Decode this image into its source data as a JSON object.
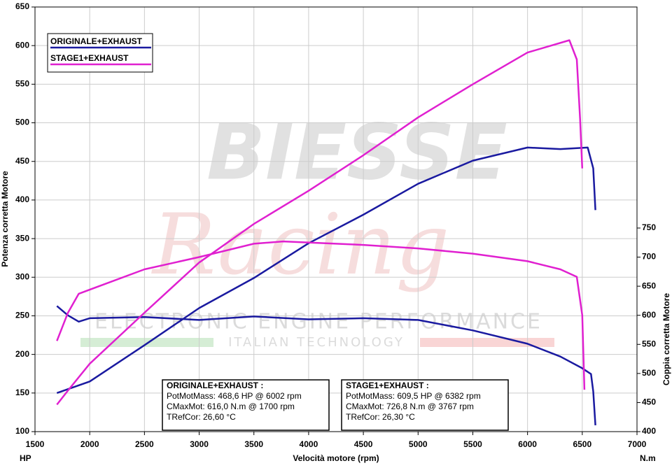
{
  "chart_data": {
    "type": "line",
    "xlabel": "Velocità motore (rpm)",
    "ylabel": "Potenza corretta Motore",
    "y2label": "Coppia corretta Motore",
    "yunit": "HP",
    "y2unit": "N.m",
    "xlim": [
      1500,
      7000
    ],
    "xticks": [
      1500,
      2000,
      2500,
      3000,
      3500,
      4000,
      4500,
      5000,
      5500,
      6000,
      6500,
      7000
    ],
    "ylim": [
      100,
      650
    ],
    "yticks": [
      100,
      150,
      200,
      250,
      300,
      350,
      400,
      450,
      500,
      550,
      600,
      650
    ],
    "y2lim": [
      400,
      1130
    ],
    "y2ticks": [
      400,
      450,
      500,
      550,
      600,
      650,
      700,
      750
    ],
    "grid": true,
    "legend": "upper left",
    "legend_entries": [
      {
        "name": "ORIGINALE+EXHAUST",
        "color": "#1a1aa0"
      },
      {
        "name": "STAGE1+EXHAUST",
        "color": "#e020d0"
      }
    ],
    "series": [
      {
        "color": "#1a1aa0",
        "axis": "y",
        "x": [
          1700,
          2000,
          2500,
          3000,
          3500,
          4000,
          4500,
          5000,
          5500,
          6000,
          6300,
          6550,
          6600,
          6620
        ],
        "values": [
          150,
          165,
          212,
          260,
          299,
          344,
          381,
          421,
          451,
          468,
          466,
          468,
          441,
          387
        ]
      },
      {
        "color": "#1a1aa0",
        "axis": "y2",
        "x": [
          1700,
          1800,
          1900,
          2000,
          2500,
          3000,
          3500,
          4000,
          4500,
          5000,
          5500,
          6000,
          6300,
          6500,
          6580,
          6600,
          6620
        ],
        "values": [
          616,
          600,
          589,
          595,
          597,
          592,
          598,
          593,
          595,
          592,
          574,
          551,
          529,
          509,
          499,
          469,
          411
        ]
      },
      {
        "color": "#e020d0",
        "axis": "y",
        "x": [
          1700,
          1800,
          2000,
          2500,
          3000,
          3500,
          4000,
          4500,
          5000,
          5500,
          6000,
          6382,
          6450,
          6480,
          6500
        ],
        "values": [
          135,
          153,
          188,
          254,
          319,
          369,
          412,
          458,
          507,
          550,
          591,
          607,
          582,
          505,
          441
        ]
      },
      {
        "color": "#e020d0",
        "axis": "y2",
        "x": [
          1700,
          1800,
          1900,
          2500,
          3000,
          3500,
          3767,
          4500,
          5000,
          5500,
          6000,
          6300,
          6450,
          6500,
          6520
        ],
        "values": [
          556,
          604,
          637,
          679,
          700,
          723,
          727,
          721,
          715,
          706,
          693,
          679,
          666,
          600,
          472
        ]
      }
    ],
    "watermark": {
      "brand": "BIESSE",
      "script": "Racing",
      "tagline": "ELECTRONIC ENGINE PERFORMANCE",
      "sub": "ITALIAN TECHNOLOGY"
    },
    "info_boxes": [
      {
        "title": "ORIGINALE+EXHAUST :",
        "lines": [
          "PotMotMass: 468,6 HP @ 6002 rpm",
          "CMaxMot: 616,0 N.m @ 1700 rpm",
          "TRefCor: 26,60 °C"
        ]
      },
      {
        "title": "STAGE1+EXHAUST :",
        "lines": [
          "PotMotMass: 609,5 HP @ 6382 rpm",
          "CMaxMot: 726,8 N.m @ 3767 rpm",
          "TRefCor: 26,30 °C"
        ]
      }
    ]
  }
}
